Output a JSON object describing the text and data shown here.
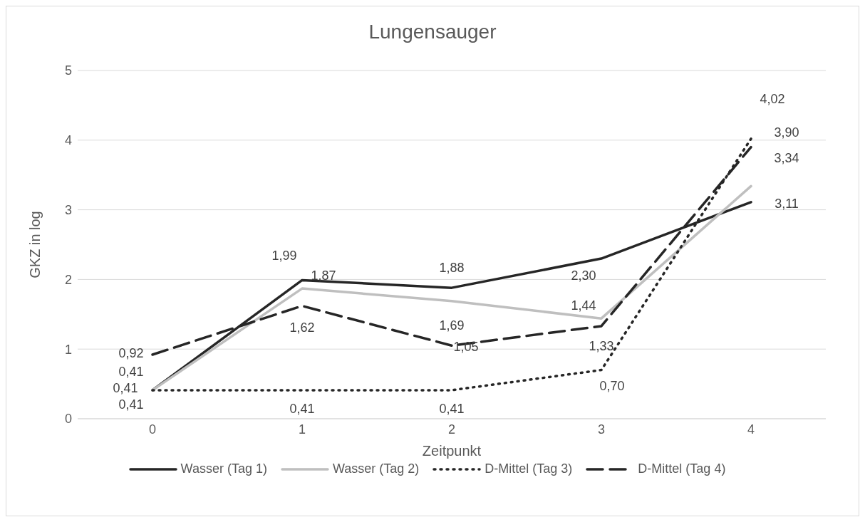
{
  "chart_data": {
    "type": "line",
    "title": "Lungensauger",
    "xlabel": "Zeitpunkt",
    "ylabel": "GKZ in log",
    "categories": [
      "0",
      "1",
      "2",
      "3",
      "4"
    ],
    "series": [
      {
        "name": "Wasser (Tag 1)",
        "color": "#262626",
        "line_style": "solid",
        "values": [
          0.41,
          1.99,
          1.88,
          2.3,
          3.11
        ],
        "value_labels": [
          "0,41",
          "1,99",
          "1,88",
          "2,30",
          "3,11"
        ]
      },
      {
        "name": "Wasser (Tag 2)",
        "color": "#bfbfbf",
        "line_style": "solid",
        "values": [
          0.41,
          1.87,
          1.69,
          1.44,
          3.34
        ],
        "value_labels": [
          "0,41",
          "1,87",
          "1,69",
          "1,44",
          "3,34"
        ]
      },
      {
        "name": "D-Mittel (Tag 3)",
        "color": "#262626",
        "line_style": "dotted",
        "values": [
          0.41,
          0.41,
          0.41,
          0.7,
          4.02
        ],
        "value_labels": [
          "0,41",
          "0,41",
          "0,41",
          "0,70",
          "4,02"
        ]
      },
      {
        "name": "D-Mittel (Tag 4)",
        "color": "#262626",
        "line_style": "dashed",
        "values": [
          0.92,
          1.62,
          1.05,
          1.33,
          3.9
        ],
        "value_labels": [
          "0,92",
          "1,62",
          "1,05",
          "1,33",
          "3,90"
        ]
      }
    ],
    "ylim": [
      0,
      5
    ],
    "yticks": [
      0,
      1,
      2,
      3,
      4,
      5
    ],
    "grid": "y",
    "legend": "bottom",
    "marker": "none"
  }
}
